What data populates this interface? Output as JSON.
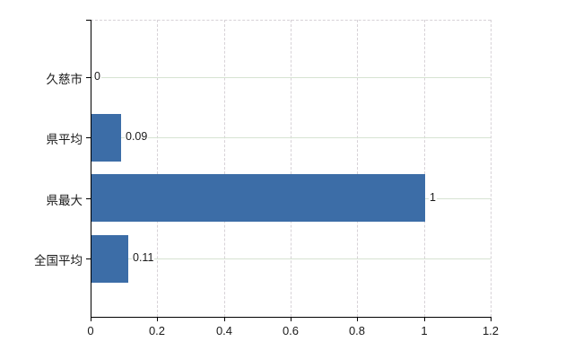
{
  "chart_data": {
    "type": "bar",
    "orientation": "horizontal",
    "title": "",
    "xlabel": "",
    "ylabel": "",
    "categories": [
      "久慈市",
      "県平均",
      "県最大",
      "全国平均"
    ],
    "values": [
      0,
      0.09,
      1,
      0.11
    ],
    "data_labels": [
      "0",
      "0.09",
      "1",
      "0.11"
    ],
    "xlim": [
      0,
      1.2
    ],
    "x_ticks": [
      0,
      0.2,
      0.4,
      0.6,
      0.8,
      1,
      1.2
    ],
    "x_tick_labels": [
      "0",
      "0.2",
      "0.4",
      "0.6",
      "0.8",
      "1",
      "1.2"
    ],
    "legend": "none",
    "grid": {
      "horizontal": true,
      "vertical": true,
      "top_border": true
    },
    "colors": {
      "bar": "#3c6da7",
      "horizontal_grid": "#d6e3d2",
      "vertical_grid": "#d7d2d7",
      "axis": "#000000",
      "text": "#1a1a1a",
      "background": "#ffffff"
    }
  }
}
